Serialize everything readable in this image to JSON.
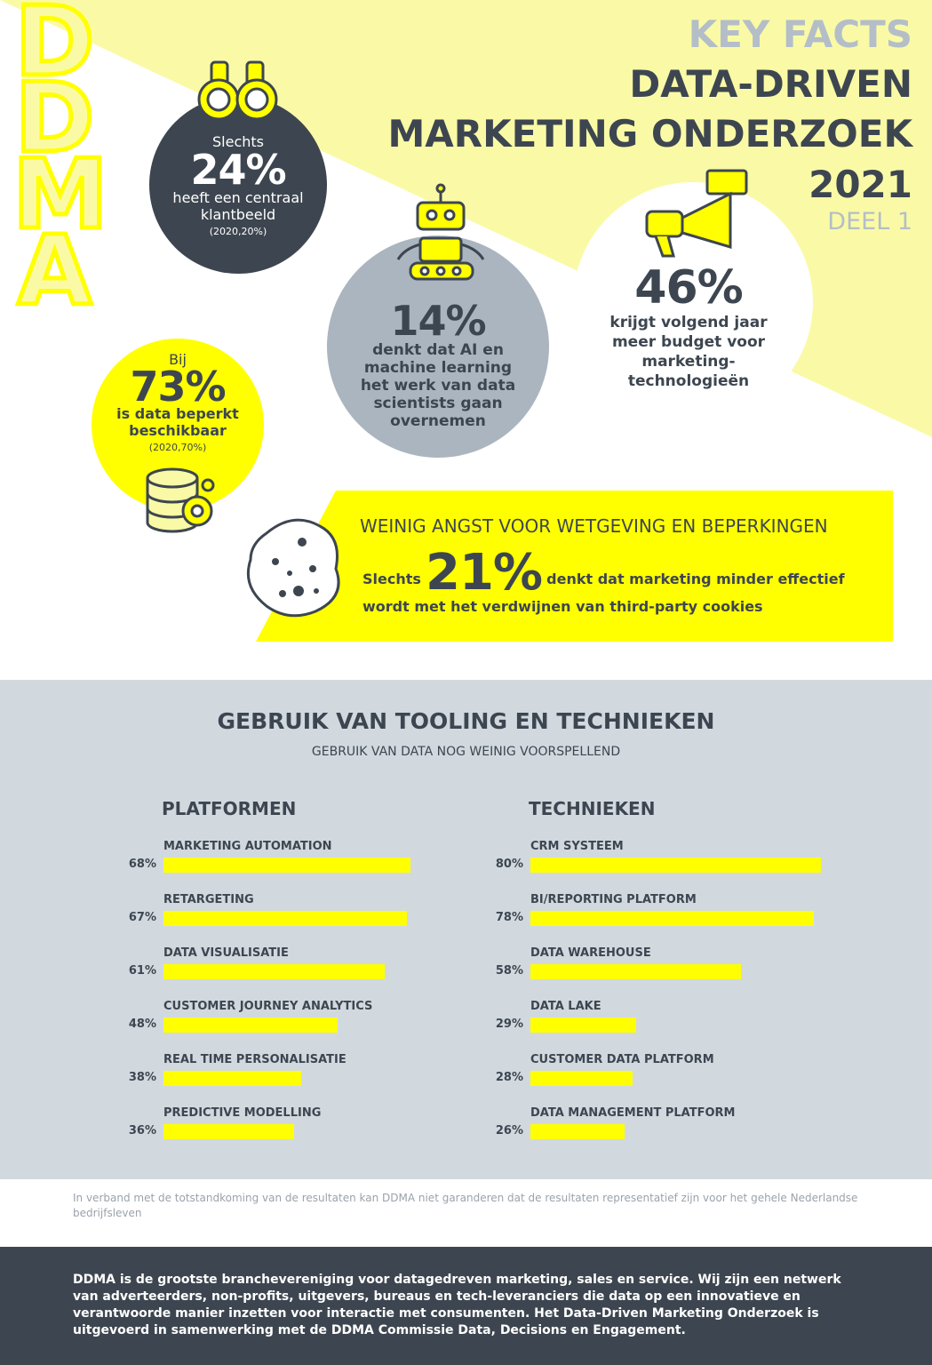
{
  "logo": [
    "D",
    "D",
    "M",
    "A"
  ],
  "header": {
    "kicker": "KEY FACTS",
    "title_lines": [
      "DATA-DRIVEN",
      "MARKETING ONDERZOEK"
    ],
    "year": "2021",
    "part": "DEEL 1"
  },
  "stats": [
    {
      "pre": "Slechts",
      "value": "24%",
      "text_lines": [
        "heeft een centraal",
        "klantbeeld"
      ],
      "note": "(2020,20%)"
    },
    {
      "value": "14%",
      "text_lines": [
        "denkt dat AI en",
        "machine learning",
        "het werk van data",
        "scientists gaan",
        "overnemen"
      ]
    },
    {
      "value": "46%",
      "text_lines": [
        "krijgt volgend jaar",
        "meer budget voor",
        "marketing-",
        "technologieën"
      ]
    },
    {
      "pre": "Bij",
      "value": "73%",
      "text_lines": [
        "is data beperkt",
        "beschikbaar"
      ],
      "note": "(2020,70%)"
    }
  ],
  "banner": {
    "title": "WEINIG ANGST VOOR WETGEVING EN BEPERKINGEN",
    "pre": "Slechts",
    "value": "21%",
    "text_lines": [
      "denkt dat marketing minder effectief",
      "wordt met het verdwijnen van third-party cookies"
    ]
  },
  "tooling": {
    "title": "GEBRUIK VAN TOOLING EN TECHNIEKEN",
    "subtitle": "GEBRUIK VAN DATA NOG WEINIG VOORSPELLEND"
  },
  "chart_data": [
    {
      "type": "bar",
      "title": "PLATFORMEN",
      "color": "#ffff00",
      "categories": [
        "MARKETING AUTOMATION",
        "RETARGETING",
        "DATA VISUALISATIE",
        "CUSTOMER JOURNEY ANALYTICS",
        "REAL TIME PERSONALISATIE",
        "PREDICTIVE MODELLING"
      ],
      "values": [
        68,
        67,
        61,
        48,
        38,
        36
      ],
      "value_labels": [
        "68%",
        "67%",
        "61%",
        "48%",
        "38%",
        "36%"
      ]
    },
    {
      "type": "bar",
      "title": "TECHNIEKEN",
      "color": "#ffff00",
      "categories": [
        "CRM SYSTEEM",
        "BI/REPORTING PLATFORM",
        "DATA WAREHOUSE",
        "DATA LAKE",
        "CUSTOMER DATA PLATFORM",
        "DATA MANAGEMENT PLATFORM"
      ],
      "values": [
        80,
        78,
        58,
        29,
        28,
        26
      ],
      "value_labels": [
        "80%",
        "78%",
        "58%",
        "29%",
        "28%",
        "26%"
      ]
    }
  ],
  "disclaimer": "In verband met de totstandkoming van de resultaten kan DDMA niet garanderen dat de resultaten representatief zijn voor het gehele Nederlandse bedrijfsleven",
  "footer": "DDMA is de grootste branchevereniging voor datagedreven marketing, sales en service. Wij zijn een netwerk van adverteerders, non-profits, uitgevers, bureaus en tech-leveranciers die data op een innovatieve en verantwoorde manier inzetten voor interactie met consumenten. Het Data-Driven Marketing Onderzoek is uitgevoerd in samenwerking met de DDMA Commissie Data, Decisions en Engagement."
}
